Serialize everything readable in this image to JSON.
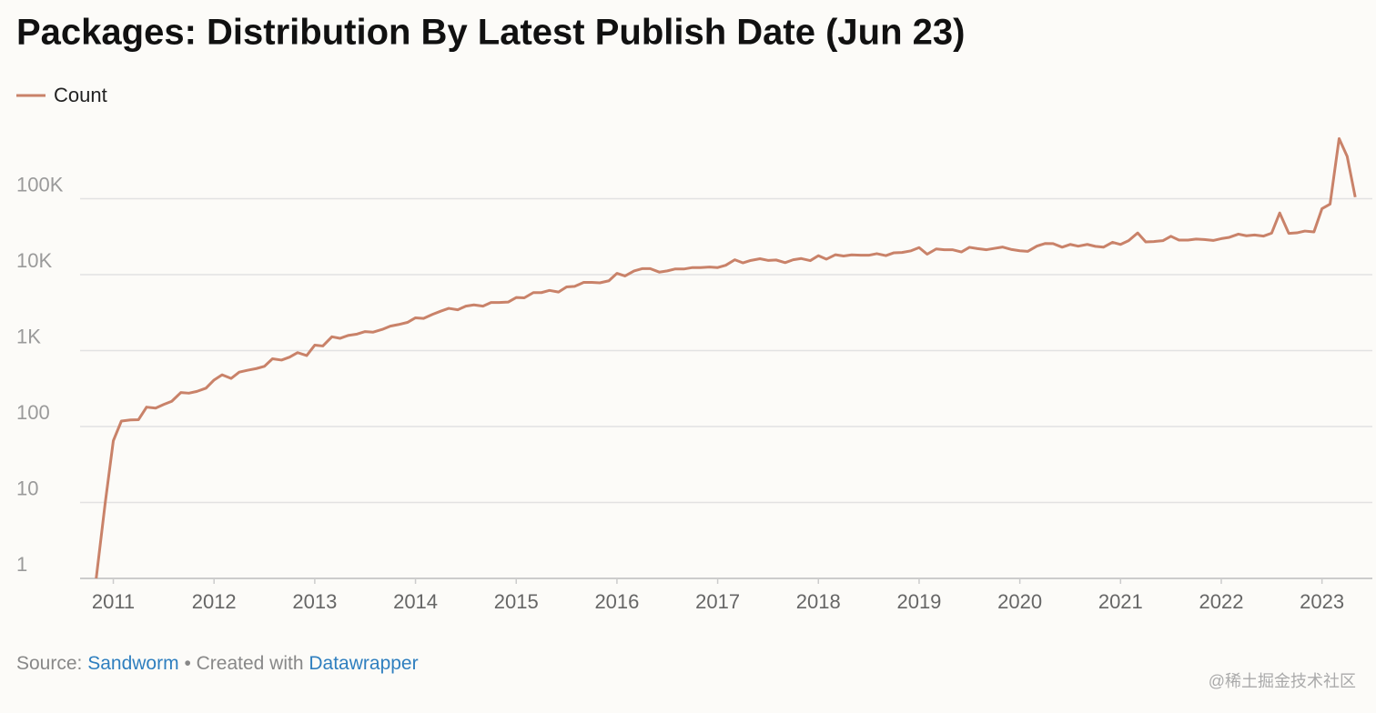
{
  "chart_data": {
    "type": "line",
    "title": "Packages: Distribution By Latest Publish Date (Jun 23)",
    "x": [
      2010.83,
      2010.92,
      2011,
      2011.08,
      2011.17,
      2011.25,
      2011.33,
      2011.42,
      2011.5,
      2011.58,
      2011.67,
      2011.75,
      2011.83,
      2011.92,
      2012,
      2012.08,
      2012.17,
      2012.25,
      2012.33,
      2012.42,
      2012.5,
      2012.58,
      2012.67,
      2012.75,
      2012.83,
      2012.92,
      2013,
      2013.08,
      2013.17,
      2013.25,
      2013.33,
      2013.42,
      2013.5,
      2013.58,
      2013.67,
      2013.75,
      2013.83,
      2013.92,
      2014,
      2014.08,
      2014.17,
      2014.25,
      2014.33,
      2014.42,
      2014.5,
      2014.58,
      2014.67,
      2014.75,
      2014.83,
      2014.92,
      2015,
      2015.08,
      2015.17,
      2015.25,
      2015.33,
      2015.42,
      2015.5,
      2015.58,
      2015.67,
      2015.75,
      2015.83,
      2015.92,
      2016,
      2016.08,
      2016.17,
      2016.25,
      2016.33,
      2016.42,
      2016.5,
      2016.58,
      2016.67,
      2016.75,
      2016.83,
      2016.92,
      2017,
      2017.08,
      2017.17,
      2017.25,
      2017.33,
      2017.42,
      2017.5,
      2017.58,
      2017.67,
      2017.75,
      2017.83,
      2017.92,
      2018,
      2018.08,
      2018.17,
      2018.25,
      2018.33,
      2018.42,
      2018.5,
      2018.58,
      2018.67,
      2018.75,
      2018.83,
      2018.92,
      2019,
      2019.08,
      2019.17,
      2019.25,
      2019.33,
      2019.42,
      2019.5,
      2019.58,
      2019.67,
      2019.75,
      2019.83,
      2019.92,
      2020,
      2020.08,
      2020.17,
      2020.25,
      2020.33,
      2020.42,
      2020.5,
      2020.58,
      2020.67,
      2020.75,
      2020.83,
      2020.92,
      2021,
      2021.08,
      2021.17,
      2021.25,
      2021.33,
      2021.42,
      2021.5,
      2021.58,
      2021.67,
      2021.75,
      2021.83,
      2021.92,
      2022,
      2022.08,
      2022.17,
      2022.25,
      2022.33,
      2022.42,
      2022.5,
      2022.58,
      2022.67,
      2022.75,
      2022.83,
      2022.92,
      2023,
      2023.08,
      2023.17,
      2023.25,
      2023.33
    ],
    "series": [
      {
        "name": "Count",
        "color": "#c98269",
        "values": [
          1,
          10,
          65,
          118,
          122,
          123,
          180,
          175,
          195,
          215,
          280,
          275,
          290,
          320,
          410,
          480,
          430,
          520,
          550,
          580,
          620,
          780,
          750,
          820,
          940,
          860,
          1180,
          1150,
          1520,
          1450,
          1580,
          1650,
          1780,
          1750,
          1900,
          2100,
          2200,
          2350,
          2700,
          2650,
          3000,
          3300,
          3600,
          3450,
          3850,
          4000,
          3850,
          4300,
          4300,
          4350,
          5000,
          4950,
          5800,
          5800,
          6200,
          5900,
          6900,
          7000,
          7900,
          7900,
          7800,
          8300,
          10400,
          9600,
          11200,
          12000,
          12000,
          10800,
          11200,
          11900,
          11900,
          12400,
          12400,
          12600,
          12400,
          13300,
          15700,
          14300,
          15400,
          16200,
          15400,
          15600,
          14400,
          15700,
          16300,
          15300,
          17800,
          16000,
          18300,
          17600,
          18200,
          18000,
          18000,
          18900,
          17800,
          19400,
          19600,
          20600,
          22700,
          18600,
          21800,
          21300,
          21300,
          19900,
          22900,
          22000,
          21300,
          22200,
          23100,
          21400,
          20600,
          20300,
          23800,
          25700,
          25600,
          23000,
          25000,
          23700,
          25000,
          23600,
          23000,
          26700,
          25000,
          28000,
          35400,
          27000,
          27300,
          28000,
          32000,
          28500,
          28500,
          29400,
          29000,
          28200,
          29800,
          31000,
          34200,
          32500,
          33300,
          32200,
          35200,
          65000,
          35000,
          35500,
          37500,
          36500,
          74000,
          85000,
          620000,
          360000,
          105000
        ]
      }
    ],
    "xlim": [
      2010.67,
      2023.5
    ],
    "xticks": [
      2011,
      2012,
      2013,
      2014,
      2015,
      2016,
      2017,
      2018,
      2019,
      2020,
      2021,
      2022,
      2023
    ],
    "ylim": [
      1,
      1000000
    ],
    "yticks": [
      1,
      10,
      100,
      {
        "value": 1000,
        "label": "1K"
      },
      {
        "value": 10000,
        "label": "10K"
      },
      {
        "value": 100000,
        "label": "100K"
      }
    ],
    "log_y": true,
    "grid": true,
    "legend": "top-left",
    "source_prefix": "Source:",
    "source_name": "Sandworm",
    "credit_prefix": "• Created with",
    "credit_name": "Datawrapper",
    "watermark": "@稀土掘金技术社区"
  }
}
